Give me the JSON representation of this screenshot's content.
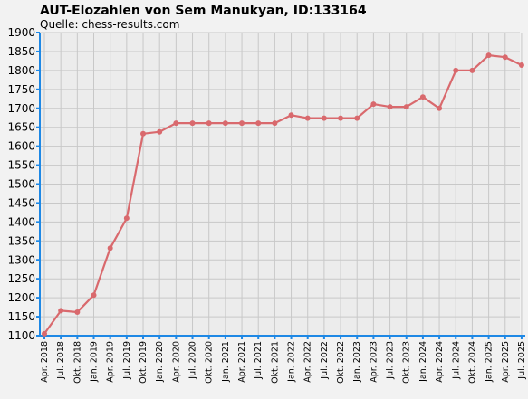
{
  "chart_data": {
    "type": "line",
    "title": "AUT-Elozahlen von Sem Manukyan, ID:133164",
    "subtitle": "Quelle: chess-results.com",
    "xlabel": "",
    "ylabel": "",
    "ylim": [
      1100,
      1900
    ],
    "y_ticks": [
      1100,
      1150,
      1200,
      1250,
      1300,
      1350,
      1400,
      1450,
      1500,
      1550,
      1600,
      1650,
      1700,
      1750,
      1800,
      1850,
      1900
    ],
    "grid": true,
    "legend": "none",
    "categories": [
      "Apr. 2018",
      "Jul. 2018",
      "Okt. 2018",
      "Jan. 2019",
      "Apr. 2019",
      "Jul. 2019",
      "Okt. 2019",
      "Jan. 2020",
      "Apr. 2020",
      "Jul. 2020",
      "Okt. 2020",
      "Jan. 2021",
      "Apr. 2021",
      "Jul. 2021",
      "Okt. 2021",
      "Jan. 2022",
      "Apr. 2022",
      "Jul. 2022",
      "Okt. 2022",
      "Jan. 2023",
      "Apr. 2023",
      "Jul. 2023",
      "Okt. 2023",
      "Jan. 2024",
      "Apr. 2024",
      "Jul. 2024",
      "Okt. 2024",
      "Jan. 2025",
      "Apr. 2025",
      "Jul. 2025"
    ],
    "series": [
      {
        "values": [
          1105,
          1166,
          1162,
          1207,
          1331,
          1410,
          1633,
          1638,
          1661,
          1661,
          1661,
          1661,
          1661,
          1661,
          1661,
          1682,
          1674,
          1674,
          1674,
          1674,
          1711,
          1704,
          1704,
          1730,
          1700,
          1800,
          1800,
          1840,
          1835,
          1814
        ],
        "color": "#d9696d"
      }
    ],
    "colors": {
      "axis": "#1e88e5",
      "grid": "#c8c8c8",
      "background": "#f2f2f2",
      "plot_background": "#ececec"
    }
  }
}
